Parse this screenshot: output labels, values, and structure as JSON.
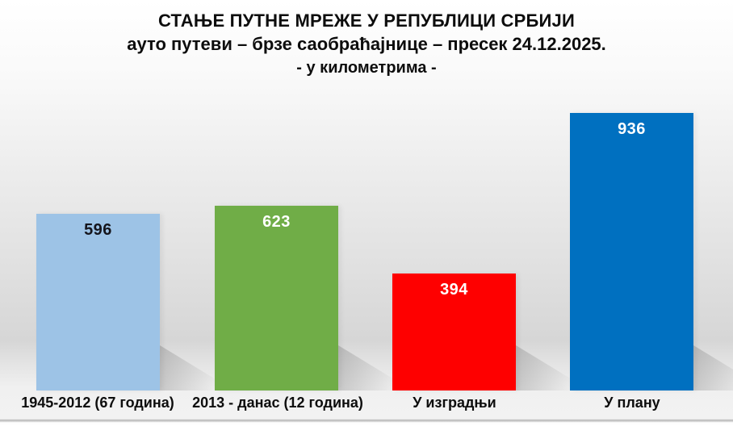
{
  "title": {
    "line1": "СТАЊЕ ПУТНЕ МРЕЖЕ У РЕПУБЛИЦИ СРБИЈИ",
    "line2": "ауто путеви – брзе саобраћајнице – пресек 24.12.2025.",
    "line3": "- у километрима -"
  },
  "chart_data": {
    "type": "bar",
    "title": "СТАЊЕ ПУТНЕ МРЕЖЕ У РЕПУБЛИЦИ СРБИЈИ",
    "subtitle": "ауто путеви – брзе саобраћајнице – пресек 24.12.2025.",
    "units_label": "- у километрима -",
    "categories": [
      "1945-2012 (67 година)",
      "2013 - данас (12 година)",
      "У изградњи",
      "У плану"
    ],
    "values": [
      596,
      623,
      394,
      936
    ],
    "bar_colors": [
      "#9DC3E6",
      "#70AD47",
      "#FE0000",
      "#0070C0"
    ],
    "value_label_colors": [
      "#15151c",
      "#ffffff",
      "#ffffff",
      "#ffffff"
    ],
    "ylim": [
      0,
      936
    ],
    "grid": false,
    "legend": false,
    "data_labels": "inside-top"
  }
}
